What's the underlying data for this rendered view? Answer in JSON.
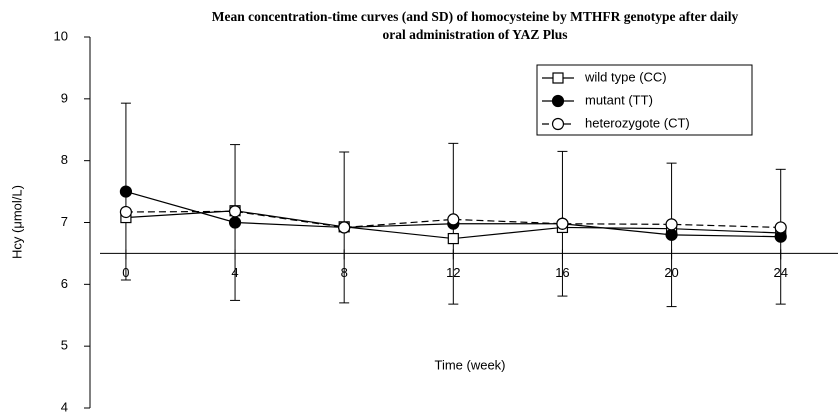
{
  "chart_data": {
    "type": "line",
    "title": [
      "Mean concentration-time curves (and SD) of homocysteine by MTHFR genotype after daily",
      "oral administration of YAZ Plus"
    ],
    "x_label": "Time (week)",
    "y_label": "Hcy (μmol/L)",
    "x": [
      0,
      4,
      8,
      12,
      16,
      20,
      24
    ],
    "series": [
      {
        "name": "wild type (CC)",
        "color": "#000000",
        "marker": "square",
        "marker_fill": "#ffffff",
        "line_style": "solid",
        "values": [
          7.08,
          7.19,
          6.93,
          6.74,
          6.92,
          6.9,
          6.83
        ]
      },
      {
        "name": "mutant (TT)",
        "color": "#000000",
        "marker": "circle",
        "marker_fill": "#000000",
        "line_style": "solid",
        "values": [
          7.5,
          7.0,
          6.92,
          6.98,
          6.98,
          6.8,
          6.77
        ],
        "errors": [
          1.43,
          1.26,
          1.22,
          1.3,
          1.17,
          1.16,
          1.09
        ]
      },
      {
        "name": "heterozygote (CT)",
        "color": "#000000",
        "marker": "circle",
        "marker_fill": "#ffffff",
        "line_style": "dashed",
        "values": [
          7.17,
          7.18,
          6.92,
          7.05,
          6.98,
          6.97,
          6.92
        ]
      }
    ],
    "xlim": [
      -0.95,
      26.1
    ],
    "xticks": [
      0,
      4,
      8,
      12,
      16,
      20,
      24
    ],
    "ylim": [
      4,
      10
    ],
    "yticks": [
      4,
      5,
      6,
      7,
      8,
      9,
      10
    ],
    "x_axis_crossing": 6.5,
    "legend": "upper right",
    "grid": false
  }
}
